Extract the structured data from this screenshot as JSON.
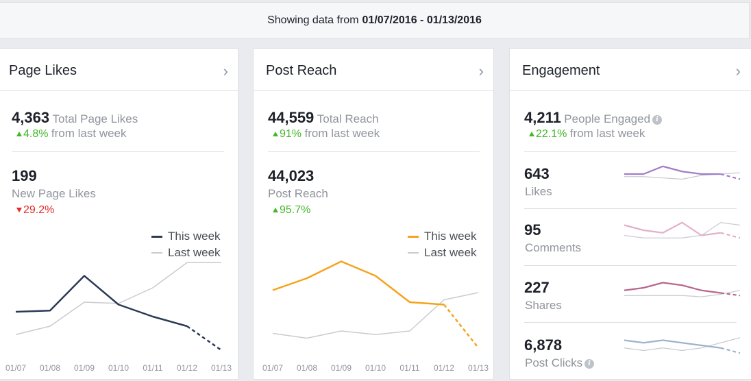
{
  "header": {
    "prefix": "Showing data from",
    "range": "01/07/2016 - 01/13/2016"
  },
  "cards": {
    "likes": {
      "title": "Page Likes",
      "total_value": "4,363",
      "total_label": "Total Page Likes",
      "total_change": "4.8%",
      "total_change_suffix": "from last week",
      "new_value": "199",
      "new_label": "New Page Likes",
      "new_change": "29.2%"
    },
    "reach": {
      "title": "Post Reach",
      "total_value": "44,559",
      "total_label": "Total Reach",
      "total_change": "91%",
      "total_change_suffix": "from last week",
      "post_value": "44,023",
      "post_label": "Post Reach",
      "post_change": "95.7%"
    },
    "engagement": {
      "title": "Engagement",
      "total_value": "4,211",
      "total_label": "People Engaged",
      "total_change": "22.1%",
      "total_change_suffix": "from last week",
      "rows": [
        {
          "value": "643",
          "label": "Likes",
          "color": "#a07dc6"
        },
        {
          "value": "95",
          "label": "Comments",
          "color": "#e3b0c8"
        },
        {
          "value": "227",
          "label": "Shares",
          "color": "#b9668c"
        },
        {
          "value": "6,878",
          "label": "Post Clicks",
          "color": "#9fb1cf"
        }
      ]
    }
  },
  "legend": {
    "this_week": "This week",
    "last_week": "Last week"
  },
  "icons": {
    "chevron": "›",
    "info": "i"
  },
  "colors": {
    "likes_this_week": "#2b3a55",
    "reach_this_week": "#f7a21b",
    "last_week": "#c8cbd0",
    "up": "#42b72a",
    "down": "#e02b2b"
  },
  "chart_data": [
    {
      "type": "line",
      "x": [
        "01/07",
        "01/08",
        "01/09",
        "01/10",
        "01/11",
        "01/12",
        "01/13"
      ],
      "series": [
        {
          "name": "This week",
          "values": [
            32,
            33,
            62,
            38,
            28,
            20,
            0
          ]
        },
        {
          "name": "Last week",
          "values": [
            13,
            20,
            40,
            39,
            52,
            73,
            73
          ]
        }
      ],
      "ylim": [
        0,
        80
      ],
      "grid": false,
      "legend": "top-right",
      "last_segment_dashed": true
    },
    {
      "type": "line",
      "x": [
        "01/07",
        "01/08",
        "01/09",
        "01/10",
        "01/11",
        "01/12",
        "01/13"
      ],
      "series": [
        {
          "name": "This week",
          "values": [
            50,
            60,
            74,
            62,
            40,
            38,
            2
          ]
        },
        {
          "name": "Last week",
          "values": [
            14,
            10,
            16,
            13,
            16,
            42,
            48
          ]
        }
      ],
      "ylim": [
        0,
        80
      ],
      "grid": false,
      "legend": "top-right",
      "last_segment_dashed": true
    },
    {
      "type": "line",
      "name": "Likes",
      "series": [
        {
          "name": "",
          "values": [
            8,
            8,
            14,
            10,
            8,
            8,
            4
          ]
        },
        {
          "name": "",
          "values": [
            6,
            6,
            5,
            4,
            7,
            8,
            9
          ]
        }
      ]
    },
    {
      "type": "line",
      "name": "Comments",
      "series": [
        {
          "name": "",
          "values": [
            12,
            8,
            6,
            14,
            4,
            6,
            2
          ]
        },
        {
          "name": "",
          "values": [
            4,
            2,
            2,
            2,
            4,
            14,
            12
          ]
        }
      ]
    },
    {
      "type": "line",
      "name": "Shares",
      "series": [
        {
          "name": "",
          "values": [
            6,
            8,
            12,
            10,
            6,
            4,
            2
          ]
        },
        {
          "name": "",
          "values": [
            2,
            2,
            2,
            2,
            1,
            3,
            6
          ]
        }
      ]
    },
    {
      "type": "line",
      "name": "Post Clicks",
      "series": [
        {
          "name": "",
          "values": [
            12,
            10,
            12,
            10,
            8,
            6,
            2
          ]
        },
        {
          "name": "",
          "values": [
            6,
            4,
            6,
            4,
            6,
            10,
            14
          ]
        }
      ]
    }
  ]
}
